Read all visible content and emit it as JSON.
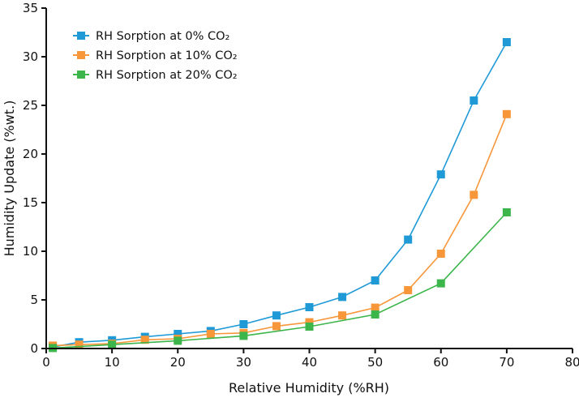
{
  "chart_data": {
    "type": "line",
    "title": "",
    "xlabel": "Relative Humidity (%RH)",
    "ylabel": "Humidity Update (%wt.)",
    "xlim": [
      0,
      80
    ],
    "ylim": [
      0,
      35
    ],
    "xticks": [
      0,
      10,
      20,
      30,
      40,
      50,
      60,
      70,
      80
    ],
    "yticks": [
      0,
      5,
      10,
      15,
      20,
      25,
      30,
      35
    ],
    "grid": false,
    "legend_position": "top-left",
    "marker": "square",
    "series": [
      {
        "name": "RH Sorption at 0% CO₂",
        "color": "#1f9ad6",
        "x": [
          1,
          5,
          10,
          15,
          20,
          25,
          30,
          35,
          40,
          45,
          50,
          55,
          60,
          65,
          70
        ],
        "y": [
          0.15,
          0.65,
          0.85,
          1.2,
          1.5,
          1.8,
          2.5,
          3.4,
          4.25,
          5.3,
          7.0,
          11.2,
          17.9,
          25.5,
          31.5
        ]
      },
      {
        "name": "RH Sorption at 10% CO₂",
        "color": "#f7973a",
        "x": [
          1,
          5,
          10,
          15,
          20,
          25,
          30,
          35,
          40,
          45,
          50,
          55,
          60,
          65,
          70
        ],
        "y": [
          0.3,
          0.4,
          0.5,
          0.9,
          1.0,
          1.5,
          1.6,
          2.3,
          2.7,
          3.4,
          4.2,
          6.0,
          9.75,
          15.8,
          24.1
        ]
      },
      {
        "name": "RH Sorption at 20% CO₂",
        "color": "#3cb54a",
        "x": [
          1,
          10,
          20,
          30,
          40,
          50,
          60,
          70
        ],
        "y": [
          0.05,
          0.4,
          0.8,
          1.3,
          2.25,
          3.5,
          6.7,
          14.0
        ]
      }
    ]
  }
}
